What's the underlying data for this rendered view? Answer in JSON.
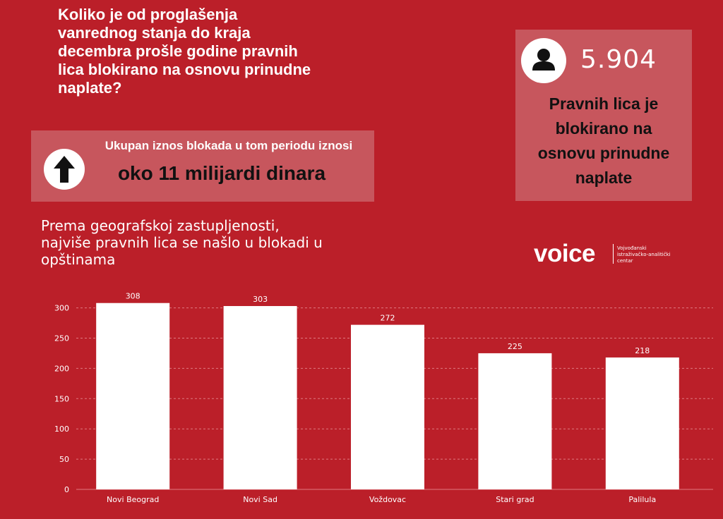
{
  "header": {
    "question": "Koliko je od proglašenja\nvanrednog stanja do kraja\ndecembra prošle godine pravnih\nlica blokirano na osnovu prinudne\nnaplate?"
  },
  "total_block": {
    "label": "Ukupan iznos blokada u tom periodu iznosi",
    "value": "oko 11 milijardi dinara",
    "icon": "arrow-up-icon"
  },
  "count_block": {
    "value": "5.904",
    "description": "Pravnih lica je\nblokirano na\nosnovu prinudne\nnaplate",
    "icon": "person-icon"
  },
  "subtitle": "Prema geografskoj zastupljenosti,\nnajviše pravnih lica se našlo u blokadi u\nopštinama",
  "logo": {
    "word": "voice",
    "tagline": "Vojvođanski\nistraživačko-analitički\ncentar"
  },
  "colors": {
    "background": "#bb1f29",
    "box": "#c7565d",
    "bar": "#ffffff"
  },
  "chart_data": {
    "type": "bar",
    "categories": [
      "Novi Beograd",
      "Novi Sad",
      "Voždovac",
      "Stari grad",
      "Palilula"
    ],
    "values": [
      308,
      303,
      272,
      225,
      218
    ],
    "yticks": [
      0,
      50,
      100,
      150,
      200,
      250,
      300
    ],
    "ylim": [
      0,
      310
    ],
    "grid": true,
    "data_labels": true
  }
}
